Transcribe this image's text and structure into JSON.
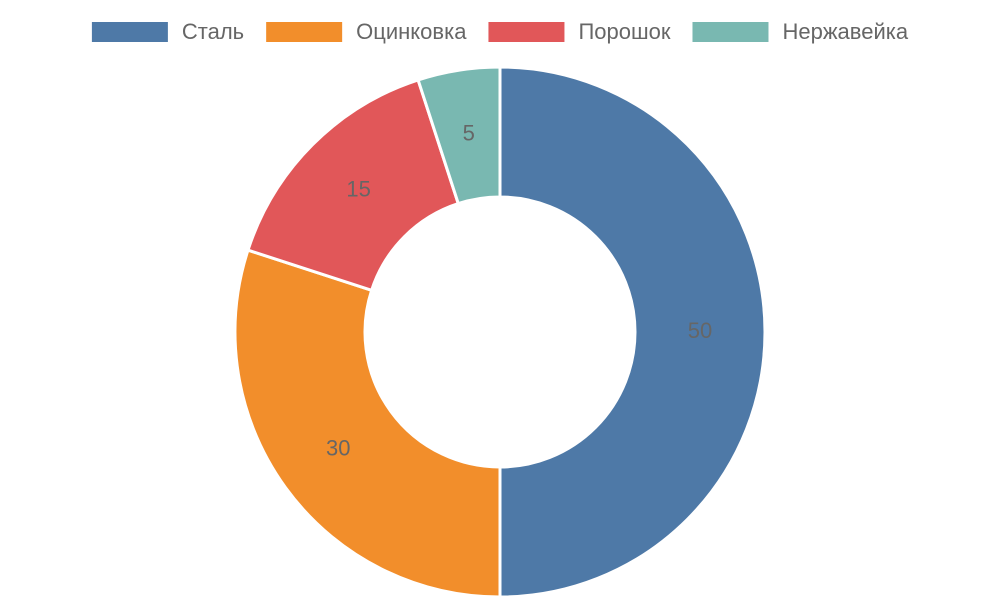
{
  "chart_data": {
    "type": "donut",
    "categories": [
      "Сталь",
      "Оцинковка",
      "Порошок",
      "Нержавейка"
    ],
    "values": [
      50,
      30,
      15,
      5
    ],
    "colors": [
      "#4e79a7",
      "#f28e2b",
      "#e15759",
      "#79b8b1"
    ],
    "legend": "top"
  }
}
